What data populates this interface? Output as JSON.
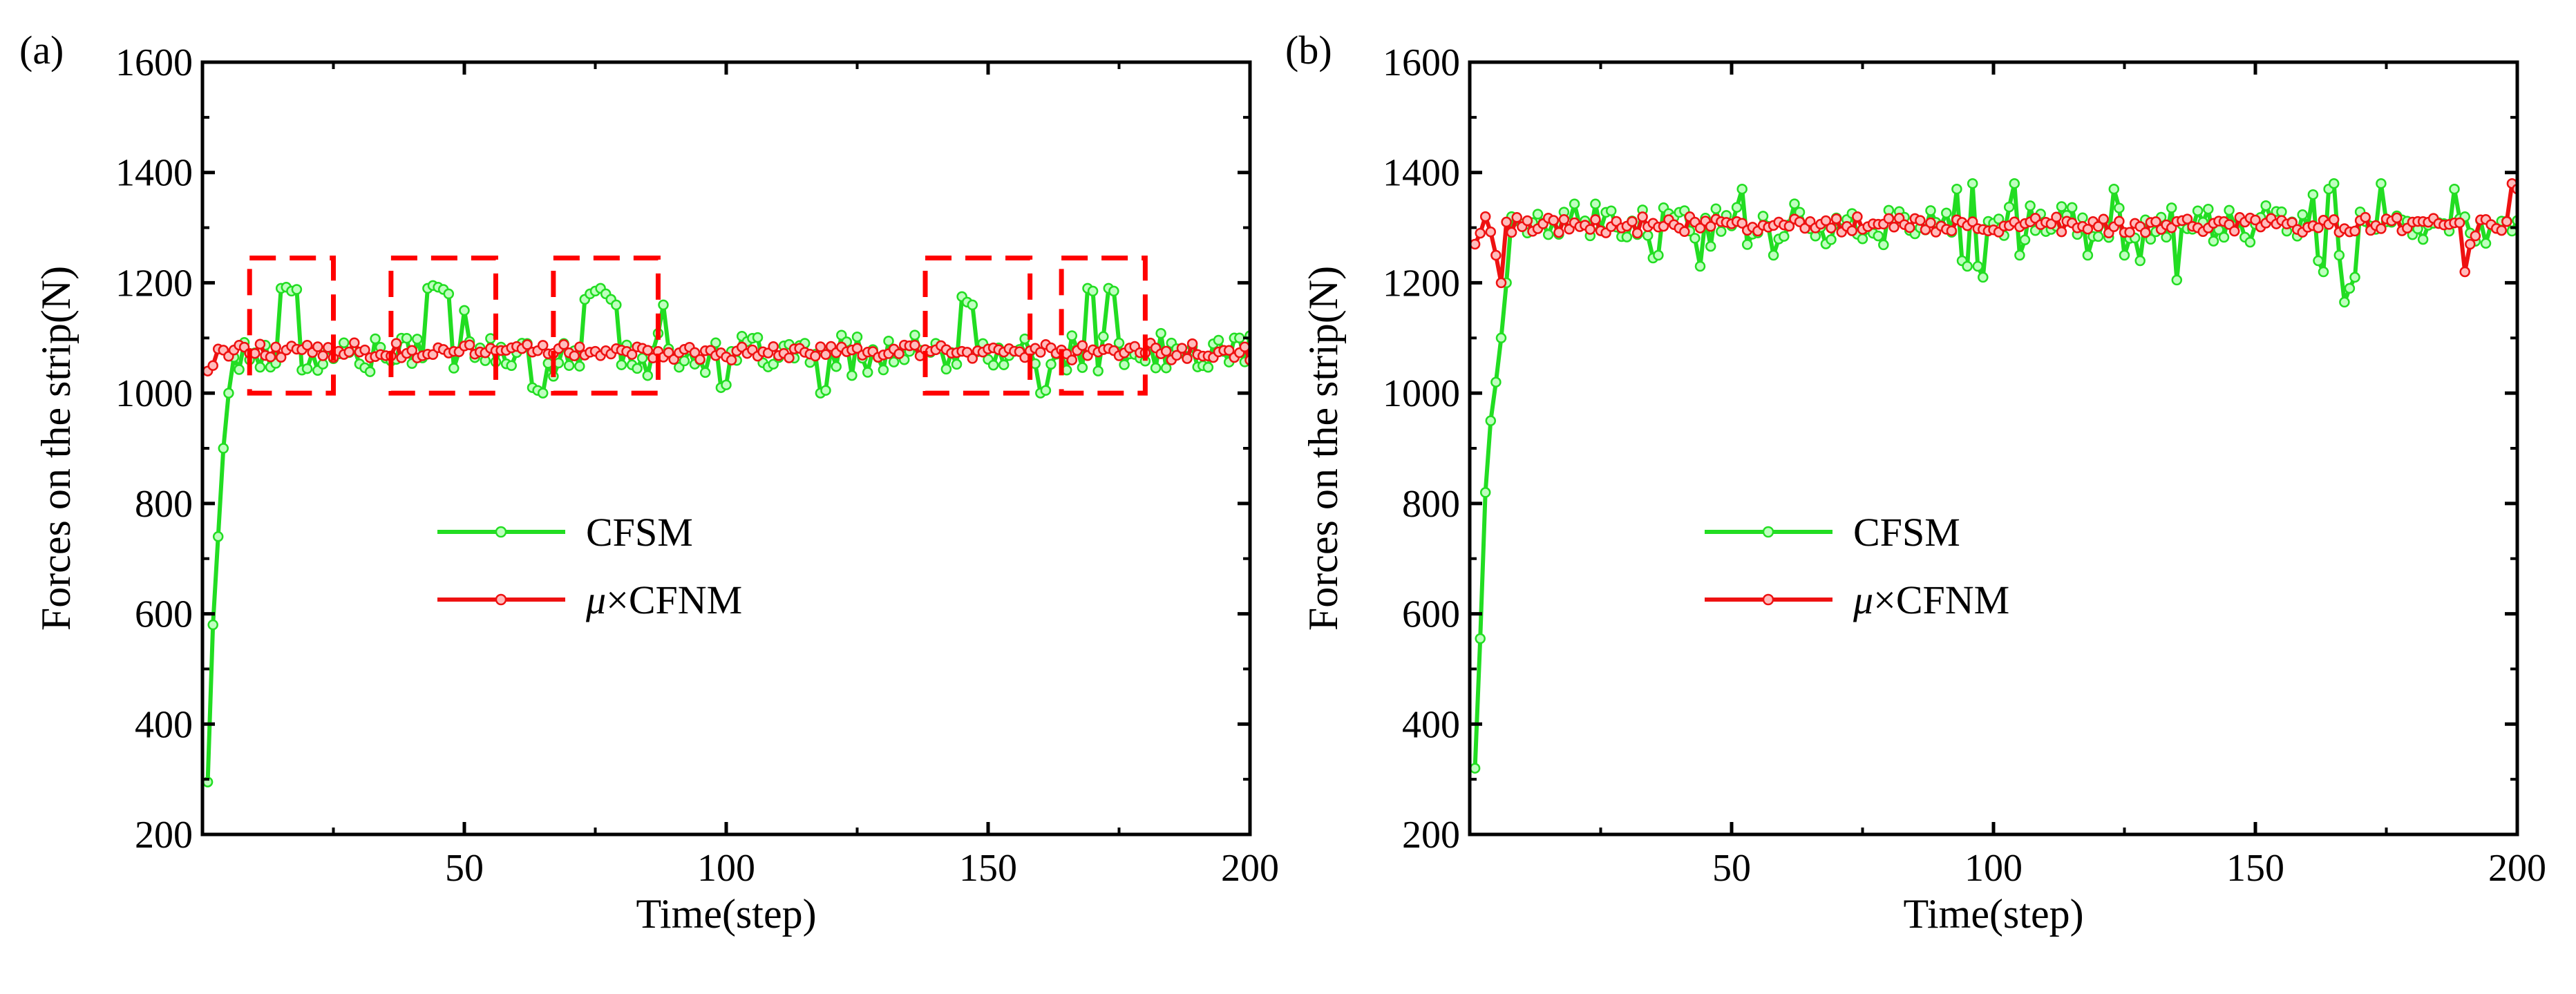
{
  "colors": {
    "cfsm": "#22dd22",
    "cfsm_marker_fill": "#bfffbf",
    "cfnm": "#ee1111",
    "cfnm_marker_fill": "#ffbcbc",
    "highlight_box": "#ff0000",
    "axis": "#000000"
  },
  "chart_data": [
    {
      "panel_label": "(a)",
      "type": "line",
      "xlabel": "Time(step)",
      "ylabel": "Forces on the strip(N)",
      "xlim": [
        0,
        200
      ],
      "ylim": [
        200,
        1600
      ],
      "xticks": [
        50,
        100,
        150,
        200
      ],
      "yticks": [
        200,
        400,
        600,
        800,
        1000,
        1200,
        1400,
        1600
      ],
      "legend": {
        "position": "center-left",
        "entries": [
          "CFSM",
          "μ×CFNM"
        ]
      },
      "series": [
        {
          "name": "CFSM",
          "baseline": 1070,
          "noise": 30,
          "startup": [
            [
              1,
              295
            ],
            [
              2,
              580
            ],
            [
              3,
              740
            ],
            [
              4,
              900
            ],
            [
              5,
              1000
            ],
            [
              6,
              1065
            ]
          ],
          "events": [
            [
              15,
              1190
            ],
            [
              16,
              1192
            ],
            [
              17,
              1185
            ],
            [
              18,
              1188
            ],
            [
              43,
              1190
            ],
            [
              44,
              1195
            ],
            [
              45,
              1192
            ],
            [
              46,
              1188
            ],
            [
              47,
              1180
            ],
            [
              50,
              1150
            ],
            [
              63,
              1010
            ],
            [
              64,
              1005
            ],
            [
              65,
              1000
            ],
            [
              73,
              1170
            ],
            [
              74,
              1180
            ],
            [
              75,
              1185
            ],
            [
              76,
              1190
            ],
            [
              77,
              1180
            ],
            [
              78,
              1170
            ],
            [
              79,
              1160
            ],
            [
              88,
              1160
            ],
            [
              99,
              1010
            ],
            [
              100,
              1015
            ],
            [
              118,
              1000
            ],
            [
              119,
              1005
            ],
            [
              145,
              1175
            ],
            [
              146,
              1165
            ],
            [
              147,
              1160
            ],
            [
              160,
              1000
            ],
            [
              161,
              1005
            ],
            [
              169,
              1190
            ],
            [
              170,
              1185
            ],
            [
              173,
              1190
            ],
            [
              174,
              1185
            ],
            [
              197,
              1100
            ],
            [
              198,
              1100
            ]
          ]
        },
        {
          "name": "μ×CFNM",
          "baseline": 1075,
          "noise": 12,
          "startup": [
            [
              1,
              1040
            ],
            [
              2,
              1050
            ],
            [
              3,
              1080
            ]
          ],
          "events": []
        }
      ],
      "highlight_boxes_x": [
        [
          9,
          25
        ],
        [
          36,
          56
        ],
        [
          67,
          87
        ],
        [
          138,
          158
        ],
        [
          164,
          180
        ]
      ],
      "highlight_boxes_y": [
        1000,
        1245
      ]
    },
    {
      "panel_label": "(b)",
      "type": "line",
      "xlabel": "Time(step)",
      "ylabel": "Forces on the strip(N)",
      "xlim": [
        0,
        200
      ],
      "ylim": [
        200,
        1600
      ],
      "xticks": [
        50,
        100,
        150,
        200
      ],
      "yticks": [
        200,
        400,
        600,
        800,
        1000,
        1200,
        1400,
        1600
      ],
      "legend": {
        "position": "center-left",
        "entries": [
          "CFSM",
          "μ×CFNM"
        ]
      },
      "series": [
        {
          "name": "CFSM",
          "baseline": 1305,
          "noise": 30,
          "startup": [
            [
              1,
              320
            ],
            [
              2,
              555
            ],
            [
              3,
              820
            ],
            [
              4,
              950
            ],
            [
              5,
              1020
            ],
            [
              6,
              1100
            ],
            [
              7,
              1200
            ],
            [
              8,
              1320
            ]
          ],
          "events": [
            [
              35,
              1245
            ],
            [
              36,
              1250
            ],
            [
              44,
              1230
            ],
            [
              52,
              1370
            ],
            [
              58,
              1250
            ],
            [
              93,
              1370
            ],
            [
              94,
              1240
            ],
            [
              95,
              1230
            ],
            [
              96,
              1380
            ],
            [
              97,
              1230
            ],
            [
              98,
              1210
            ],
            [
              104,
              1380
            ],
            [
              105,
              1250
            ],
            [
              118,
              1250
            ],
            [
              123,
              1370
            ],
            [
              125,
              1250
            ],
            [
              128,
              1240
            ],
            [
              135,
              1205
            ],
            [
              161,
              1360
            ],
            [
              162,
              1240
            ],
            [
              163,
              1220
            ],
            [
              164,
              1370
            ],
            [
              165,
              1380
            ],
            [
              166,
              1250
            ],
            [
              167,
              1165
            ],
            [
              168,
              1190
            ],
            [
              169,
              1210
            ],
            [
              174,
              1380
            ],
            [
              188,
              1370
            ],
            [
              196,
              1300
            ]
          ]
        },
        {
          "name": "μ×CFNM",
          "baseline": 1305,
          "noise": 12,
          "startup": [
            [
              1,
              1270
            ],
            [
              2,
              1290
            ],
            [
              3,
              1320
            ],
            [
              5,
              1250
            ],
            [
              6,
              1200
            ]
          ],
          "events": [
            [
              190,
              1220
            ],
            [
              191,
              1270
            ],
            [
              192,
              1285
            ],
            [
              199,
              1380
            ],
            [
              200,
              1370
            ]
          ]
        }
      ]
    }
  ]
}
